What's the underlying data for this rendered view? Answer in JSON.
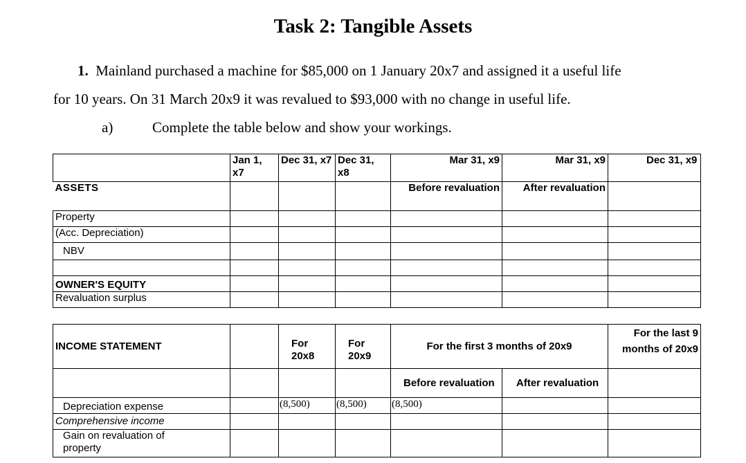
{
  "title": "Task 2: Tangible Assets",
  "question": {
    "number": "1.",
    "line1": "Mainland purchased a machine for $85,000 on 1 January 20x7 and assigned it a useful life",
    "line2": "for 10 years. On 31 March 20x9 it was revalued to $93,000 with no change in useful life.",
    "part_label": "a)",
    "part_text": "Complete the table below and show your workings."
  },
  "balance_table": {
    "headers": [
      "",
      "Jan 1, x7",
      "Dec 31, x7",
      "Dec 31, x8",
      "Mar 31, x9",
      "Mar 31, x9",
      "Dec 31, x9"
    ],
    "subheaders": [
      "ASSETS",
      "",
      "",
      "",
      "Before revaluation",
      "After revaluation",
      ""
    ],
    "rows": [
      "Property",
      "(Acc. Depreciation)",
      "NBV",
      "",
      "OWNER'S EQUITY",
      "Revaluation surplus"
    ]
  },
  "income_table": {
    "headers": [
      "INCOME STATEMENT",
      "",
      "For 20x8",
      "For 20x9",
      "For the first 3 months of 20x9",
      "For the last 9 months of 20x9"
    ],
    "subheaders": [
      "Before revaluation",
      "After revaluation"
    ],
    "rows": [
      {
        "label": "Depreciation expense",
        "values": [
          "",
          "(8,500)",
          "(8,500)",
          "(8,500)",
          "",
          ""
        ]
      },
      {
        "label": "Comprehensive income",
        "values": [
          "",
          "",
          "",
          "",
          "",
          ""
        ]
      },
      {
        "label": "Gain on revaluation of property",
        "values": [
          "",
          "",
          "",
          "",
          "",
          ""
        ]
      }
    ]
  }
}
